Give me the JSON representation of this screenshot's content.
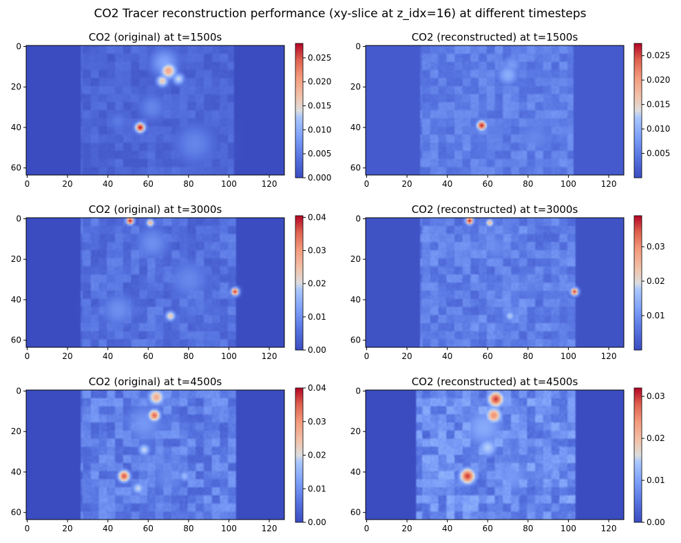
{
  "figure": {
    "suptitle": "CO2 Tracer reconstruction performance (xy-slice at z_idx=16) at different timesteps",
    "colormap": "coolwarm",
    "colors": {
      "low": "#3b4cc0",
      "mid": "#dddddd",
      "high": "#b40426"
    }
  },
  "chart_data": [
    {
      "type": "heatmap",
      "title": "CO2 (original) at t=1500s",
      "xlim": [
        0,
        127
      ],
      "ylim": [
        63,
        0
      ],
      "xticks": [
        "0",
        "20",
        "40",
        "60",
        "80",
        "100",
        "120"
      ],
      "yticks": [
        "0",
        "20",
        "40",
        "60"
      ],
      "colorbar": {
        "range": [
          0.0,
          0.028
        ],
        "ticks": [
          "0.000",
          "0.005",
          "0.010",
          "0.015",
          "0.020",
          "0.025"
        ]
      },
      "field": {
        "base": 0.0,
        "region": [
          27,
          102
        ],
        "region_level": 0.003,
        "blobs": [
          {
            "x": 56,
            "y": 40,
            "r": 2.5,
            "v": 0.028
          },
          {
            "x": 70,
            "y": 12,
            "r": 4,
            "v": 0.02
          },
          {
            "x": 67,
            "y": 17,
            "r": 3,
            "v": 0.017
          },
          {
            "x": 75,
            "y": 16,
            "r": 3,
            "v": 0.014
          },
          {
            "x": 68,
            "y": 8,
            "r": 8,
            "v": 0.009
          },
          {
            "x": 62,
            "y": 30,
            "r": 8,
            "v": 0.006
          },
          {
            "x": 83,
            "y": 48,
            "r": 12,
            "v": 0.006
          },
          {
            "x": 45,
            "y": 37,
            "r": 6,
            "v": 0.005
          }
        ]
      }
    },
    {
      "type": "heatmap",
      "title": "CO2 (reconstructed) at t=1500s",
      "xlim": [
        0,
        127
      ],
      "ylim": [
        63,
        0
      ],
      "xticks": [
        "0",
        "20",
        "40",
        "60",
        "80",
        "100",
        "120"
      ],
      "yticks": [
        "0",
        "20",
        "40",
        "60"
      ],
      "colorbar": {
        "range": [
          0.0,
          0.0275
        ],
        "ticks": [
          "0.005",
          "0.010",
          "0.015",
          "0.020",
          "0.025"
        ]
      },
      "field": {
        "base": 0.0015,
        "region": [
          27,
          102
        ],
        "region_level": 0.004,
        "blobs": [
          {
            "x": 57,
            "y": 39,
            "r": 2.5,
            "v": 0.027
          },
          {
            "x": 70,
            "y": 14,
            "r": 6,
            "v": 0.01
          },
          {
            "x": 72,
            "y": 9,
            "r": 6,
            "v": 0.008
          },
          {
            "x": 83,
            "y": 45,
            "r": 12,
            "v": 0.006
          },
          {
            "x": 60,
            "y": 28,
            "r": 10,
            "v": 0.005
          }
        ]
      }
    },
    {
      "type": "heatmap",
      "title": "CO2 (original) at t=3000s",
      "xlim": [
        0,
        127
      ],
      "ylim": [
        63,
        0
      ],
      "xticks": [
        "0",
        "20",
        "40",
        "60",
        "80",
        "100",
        "120"
      ],
      "yticks": [
        "0",
        "20",
        "40",
        "60"
      ],
      "colorbar": {
        "range": [
          0.0,
          0.0405
        ],
        "ticks": [
          "0.00",
          "0.01",
          "0.02",
          "0.03",
          "0.04"
        ]
      },
      "field": {
        "base": 0.0,
        "region": [
          27,
          103
        ],
        "region_level": 0.006,
        "blobs": [
          {
            "x": 51,
            "y": 1,
            "r": 2,
            "v": 0.04
          },
          {
            "x": 61,
            "y": 2,
            "r": 2,
            "v": 0.028
          },
          {
            "x": 103,
            "y": 36,
            "r": 2,
            "v": 0.038
          },
          {
            "x": 71,
            "y": 48,
            "r": 2.5,
            "v": 0.025
          },
          {
            "x": 62,
            "y": 12,
            "r": 10,
            "v": 0.01
          },
          {
            "x": 80,
            "y": 30,
            "r": 12,
            "v": 0.009
          },
          {
            "x": 45,
            "y": 45,
            "r": 10,
            "v": 0.01
          }
        ]
      }
    },
    {
      "type": "heatmap",
      "title": "CO2 (reconstructed) at t=3000s",
      "xlim": [
        0,
        127
      ],
      "ylim": [
        63,
        0
      ],
      "xticks": [
        "0",
        "20",
        "40",
        "60",
        "80",
        "100",
        "120"
      ],
      "yticks": [
        "0",
        "20",
        "40",
        "60"
      ],
      "colorbar": {
        "range": [
          0.0,
          0.039
        ],
        "ticks": [
          "0.01",
          "0.02",
          "0.03"
        ]
      },
      "field": {
        "base": 0.001,
        "region": [
          27,
          103
        ],
        "region_level": 0.007,
        "blobs": [
          {
            "x": 51,
            "y": 1,
            "r": 2,
            "v": 0.038
          },
          {
            "x": 61,
            "y": 2,
            "r": 2,
            "v": 0.026
          },
          {
            "x": 103,
            "y": 36,
            "r": 2,
            "v": 0.036
          },
          {
            "x": 71,
            "y": 48,
            "r": 2.5,
            "v": 0.018
          },
          {
            "x": 64,
            "y": 14,
            "r": 10,
            "v": 0.009
          },
          {
            "x": 80,
            "y": 32,
            "r": 12,
            "v": 0.008
          }
        ]
      }
    },
    {
      "type": "heatmap",
      "title": "CO2 (original) at t=4500s",
      "xlim": [
        0,
        127
      ],
      "ylim": [
        63,
        0
      ],
      "xticks": [
        "0",
        "20",
        "40",
        "60",
        "80",
        "100",
        "120"
      ],
      "yticks": [
        "0",
        "20",
        "40",
        "60"
      ],
      "colorbar": {
        "range": [
          0.0,
          0.04
        ],
        "ticks": [
          "0.00",
          "0.01",
          "0.02",
          "0.03",
          "0.04"
        ]
      },
      "field": {
        "base": 0.0,
        "region": [
          27,
          103
        ],
        "region_level": 0.008,
        "blobs": [
          {
            "x": 63,
            "y": 12,
            "r": 3,
            "v": 0.035
          },
          {
            "x": 64,
            "y": 3,
            "r": 4,
            "v": 0.028
          },
          {
            "x": 48,
            "y": 42,
            "r": 3,
            "v": 0.036
          },
          {
            "x": 58,
            "y": 29,
            "r": 3,
            "v": 0.02
          },
          {
            "x": 78,
            "y": 42,
            "r": 3,
            "v": 0.016
          },
          {
            "x": 55,
            "y": 48,
            "r": 3,
            "v": 0.02
          },
          {
            "x": 58,
            "y": 16,
            "r": 12,
            "v": 0.011
          },
          {
            "x": 70,
            "y": 42,
            "r": 12,
            "v": 0.009
          }
        ]
      }
    },
    {
      "type": "heatmap",
      "title": "CO2 (reconstructed) at t=4500s",
      "xlim": [
        0,
        127
      ],
      "ylim": [
        63,
        0
      ],
      "xticks": [
        "0",
        "20",
        "40",
        "60",
        "80",
        "100",
        "120"
      ],
      "yticks": [
        "0",
        "20",
        "40",
        "60"
      ],
      "colorbar": {
        "range": [
          0.0,
          0.032
        ],
        "ticks": [
          "0.00",
          "0.01",
          "0.02",
          "0.03"
        ]
      },
      "field": {
        "base": 0.0,
        "region": [
          25,
          103
        ],
        "region_level": 0.008,
        "blobs": [
          {
            "x": 64,
            "y": 4,
            "r": 4,
            "v": 0.03
          },
          {
            "x": 63,
            "y": 12,
            "r": 4,
            "v": 0.025
          },
          {
            "x": 50,
            "y": 42,
            "r": 4,
            "v": 0.03
          },
          {
            "x": 60,
            "y": 28,
            "r": 5,
            "v": 0.015
          },
          {
            "x": 58,
            "y": 18,
            "r": 12,
            "v": 0.011
          },
          {
            "x": 72,
            "y": 42,
            "r": 12,
            "v": 0.009
          }
        ]
      }
    }
  ]
}
